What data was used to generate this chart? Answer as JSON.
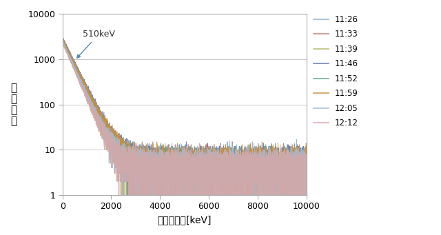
{
  "xlabel": "エネルギー[keV]",
  "ylabel": "カウント",
  "xlim": [
    0,
    10000
  ],
  "ylim_log": [
    1,
    10000
  ],
  "xticks": [
    0,
    2000,
    4000,
    6000,
    8000,
    10000
  ],
  "legend_labels": [
    "11:26",
    "11:33",
    "11:39",
    "11:46",
    "11:52",
    "11:59",
    "12:05",
    "12:12"
  ],
  "legend_colors": [
    "#8aaed4",
    "#c08080",
    "#b8b870",
    "#6878b0",
    "#60a898",
    "#c89040",
    "#a0bcd8",
    "#d4a8a8"
  ],
  "annotation_text": "510keV",
  "n_points": 10000,
  "seed": 42,
  "background_color": "#ffffff",
  "grid_color": "#c8c8c8",
  "ylabel_chars": [
    "カ",
    "ウ",
    "ン",
    "ト"
  ]
}
